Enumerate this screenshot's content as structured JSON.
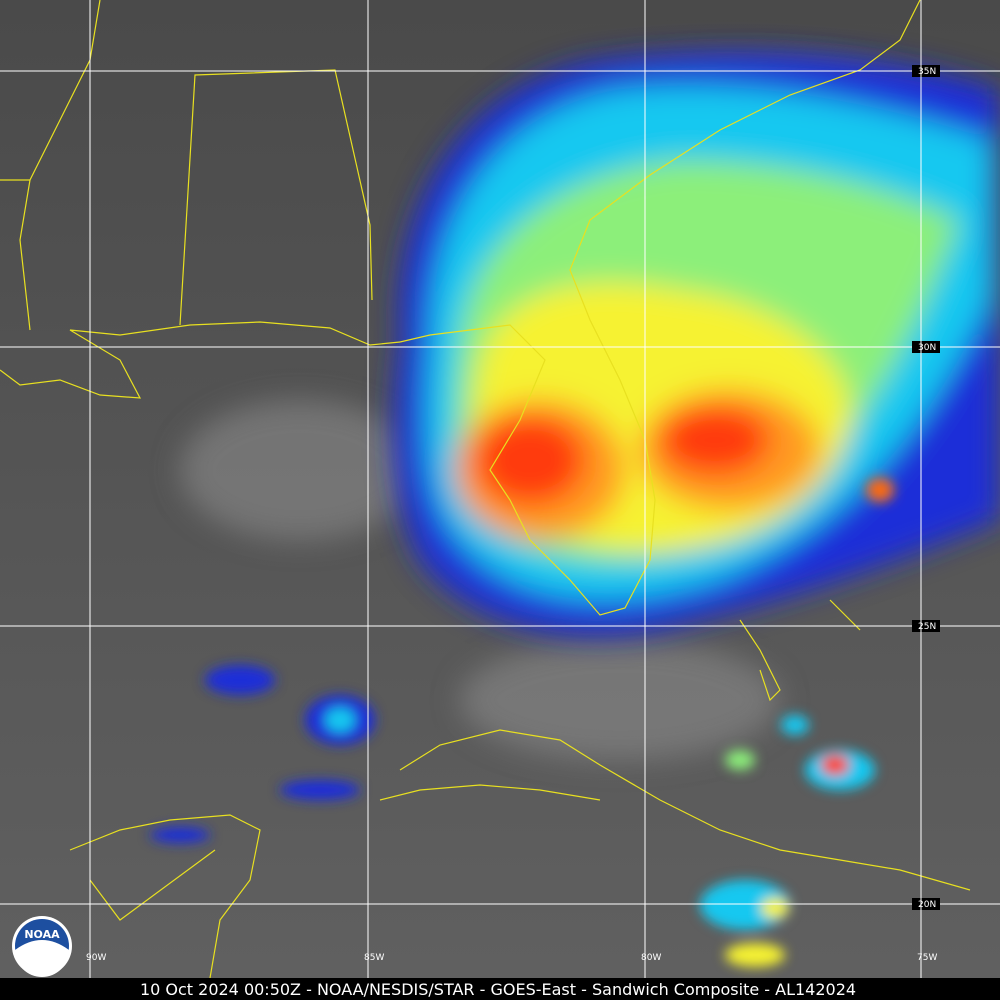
{
  "grid": {
    "latitudes": [
      "35N",
      "30N",
      "25N",
      "20N"
    ],
    "longitudes": [
      "90W",
      "85W",
      "80W",
      "75W"
    ]
  },
  "logo": "NOAA",
  "caption": "10 Oct 2024 00:50Z - NOAA/NESDIS/STAR - GOES-East - Sandwich Composite - AL142024"
}
